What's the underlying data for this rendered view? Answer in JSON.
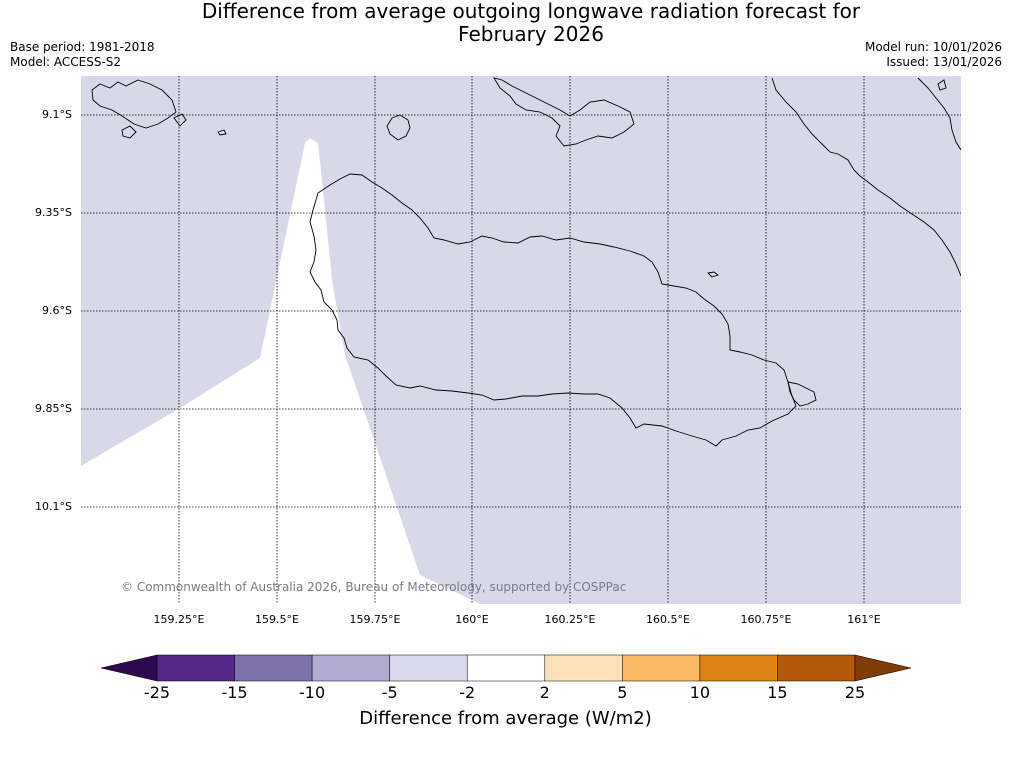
{
  "title": {
    "line1": "Difference from average outgoing longwave radiation forecast for",
    "line2": "February 2026"
  },
  "meta": {
    "base_period": "Base period: 1981-2018",
    "model": "Model: ACCESS-S2",
    "model_run": "Model run: 10/01/2026",
    "issued": "Issued: 13/01/2026"
  },
  "map": {
    "latitude_labels": [
      "9.1°S",
      "9.35°S",
      "9.6°S",
      "9.85°S",
      "10.1°S"
    ],
    "longitude_labels": [
      "159.25°E",
      "159.5°E",
      "159.75°E",
      "160°E",
      "160.25°E",
      "160.5°E",
      "160.75°E",
      "161°E"
    ],
    "copyright": "© Commonwealth of Australia 2026, Bureau of Meteorology, supported by COSPPac",
    "fill_category": "-5 to -2",
    "fill_color": "#d8d8e8",
    "neutral_color": "#ffffff"
  },
  "colorbar": {
    "label": "Difference from average (W/m2)",
    "ticks": [
      "-25",
      "-15",
      "-10",
      "-5",
      "-2",
      "2",
      "5",
      "10",
      "15",
      "25"
    ],
    "under_color": "#2d0a4e",
    "over_color": "#7f3b08",
    "colors": [
      "#542788",
      "#8073ac",
      "#b2abd2",
      "#d8daeb",
      "#ffffff",
      "#fee0b6",
      "#fdb863",
      "#e08214",
      "#b35806"
    ]
  }
}
